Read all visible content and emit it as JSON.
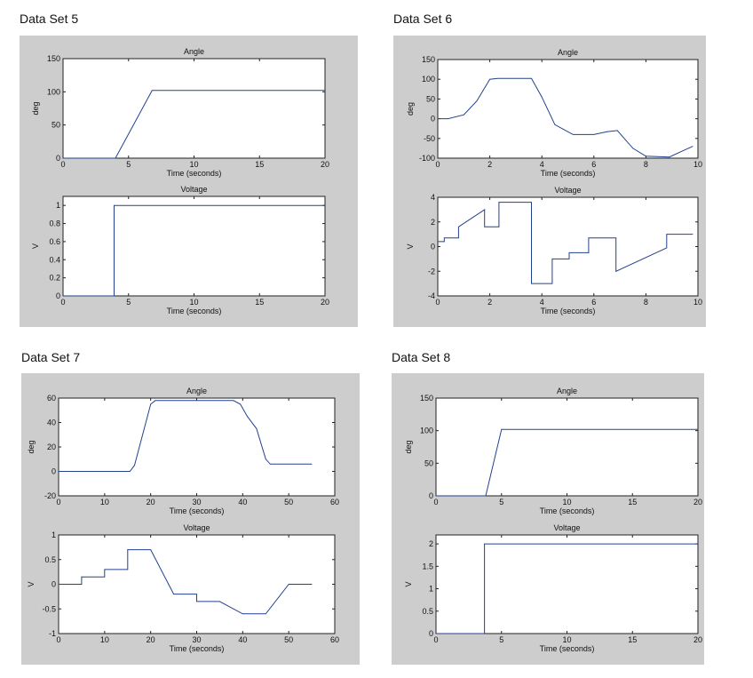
{
  "line_color": "#23418f",
  "panel_color": "#cdcdcd",
  "chart_data": [
    {
      "title": "Data Set 5",
      "subplots": [
        {
          "type": "line",
          "title": "Angle",
          "xlabel": "Time (seconds)",
          "ylabel": "deg",
          "xlim": [
            0,
            20
          ],
          "ylim": [
            0,
            150
          ],
          "xticks": [
            0,
            5,
            10,
            15,
            20
          ],
          "yticks": [
            0,
            50,
            100,
            150
          ],
          "points": [
            [
              0,
              0
            ],
            [
              4,
              0
            ],
            [
              6.8,
              102
            ],
            [
              20,
              102
            ]
          ]
        },
        {
          "type": "line",
          "title": "Voltage",
          "xlabel": "Time (seconds)",
          "ylabel": "V",
          "xlim": [
            0,
            20
          ],
          "ylim": [
            0,
            1.1
          ],
          "xticks": [
            0,
            5,
            10,
            15,
            20
          ],
          "yticks": [
            0,
            0.2,
            0.4,
            0.6,
            0.8,
            1
          ],
          "points": [
            [
              0,
              0
            ],
            [
              3.9,
              0
            ],
            [
              3.9,
              1
            ],
            [
              20,
              1
            ]
          ]
        }
      ]
    },
    {
      "title": "Data Set 6",
      "subplots": [
        {
          "type": "line",
          "title": "Angle",
          "xlabel": "Time (seconds)",
          "ylabel": "deg",
          "xlim": [
            0,
            10
          ],
          "ylim": [
            -100,
            150
          ],
          "xticks": [
            0,
            2,
            4,
            6,
            8,
            10
          ],
          "yticks": [
            -100,
            -50,
            0,
            50,
            100,
            150
          ],
          "points": [
            [
              0,
              0
            ],
            [
              0.4,
              0
            ],
            [
              1,
              10
            ],
            [
              1.5,
              45
            ],
            [
              2,
              100
            ],
            [
              2.3,
              102
            ],
            [
              3.6,
              102
            ],
            [
              4,
              55
            ],
            [
              4.5,
              -15
            ],
            [
              5.2,
              -40
            ],
            [
              6,
              -40
            ],
            [
              6.5,
              -33
            ],
            [
              6.9,
              -30
            ],
            [
              7.5,
              -75
            ],
            [
              8,
              -95
            ],
            [
              8.9,
              -97
            ],
            [
              9.3,
              -85
            ],
            [
              9.8,
              -70
            ]
          ]
        },
        {
          "type": "line",
          "title": "Voltage",
          "xlabel": "Time (seconds)",
          "ylabel": "V",
          "xlim": [
            0,
            10
          ],
          "ylim": [
            -4,
            4
          ],
          "xticks": [
            0,
            2,
            4,
            6,
            8,
            10
          ],
          "yticks": [
            -4,
            -2,
            0,
            2,
            4
          ],
          "points": [
            [
              0,
              0.4
            ],
            [
              0.25,
              0.4
            ],
            [
              0.25,
              0.7
            ],
            [
              0.8,
              0.7
            ],
            [
              0.8,
              1.6
            ],
            [
              1.8,
              3
            ],
            [
              1.8,
              1.6
            ],
            [
              2.35,
              1.6
            ],
            [
              2.35,
              3.6
            ],
            [
              3.6,
              3.6
            ],
            [
              3.6,
              -3
            ],
            [
              4.4,
              -3
            ],
            [
              4.4,
              -1
            ],
            [
              5.05,
              -1
            ],
            [
              5.05,
              -0.5
            ],
            [
              5.8,
              -0.5
            ],
            [
              5.8,
              0.7
            ],
            [
              6.85,
              0.7
            ],
            [
              6.85,
              -2
            ],
            [
              8.8,
              -0.1
            ],
            [
              8.8,
              1
            ],
            [
              9.8,
              1
            ]
          ]
        }
      ]
    },
    {
      "title": "Data Set 7",
      "subplots": [
        {
          "type": "line",
          "title": "Angle",
          "xlabel": "Time (seconds)",
          "ylabel": "deg",
          "xlim": [
            0,
            60
          ],
          "ylim": [
            -20,
            60
          ],
          "xticks": [
            0,
            10,
            20,
            30,
            40,
            50,
            60
          ],
          "yticks": [
            -20,
            0,
            20,
            40,
            60
          ],
          "points": [
            [
              0,
              0
            ],
            [
              15.5,
              0
            ],
            [
              16.5,
              5
            ],
            [
              20,
              55
            ],
            [
              21,
              58
            ],
            [
              38,
              58
            ],
            [
              39.5,
              55
            ],
            [
              41,
              45
            ],
            [
              43,
              35
            ],
            [
              45,
              10
            ],
            [
              46,
              6
            ],
            [
              55,
              6
            ]
          ]
        },
        {
          "type": "line",
          "title": "Voltage",
          "xlabel": "Time (seconds)",
          "ylabel": "V",
          "xlim": [
            0,
            60
          ],
          "ylim": [
            -1,
            1
          ],
          "xticks": [
            0,
            10,
            20,
            30,
            40,
            50,
            60
          ],
          "yticks": [
            -1,
            -0.5,
            0,
            0.5,
            1
          ],
          "points": [
            [
              0,
              0
            ],
            [
              5,
              0
            ],
            [
              5,
              0.15
            ],
            [
              10,
              0.15
            ],
            [
              10,
              0.3
            ],
            [
              15,
              0.3
            ],
            [
              15,
              0.7
            ],
            [
              20,
              0.7
            ],
            [
              25,
              -0.2
            ],
            [
              30,
              -0.2
            ],
            [
              30,
              -0.35
            ],
            [
              35,
              -0.35
            ],
            [
              40,
              -0.6
            ],
            [
              45,
              -0.6
            ],
            [
              50,
              0
            ],
            [
              55,
              0
            ]
          ]
        }
      ]
    },
    {
      "title": "Data Set 8",
      "subplots": [
        {
          "type": "line",
          "title": "Angle",
          "xlabel": "Time (seconds)",
          "ylabel": "deg",
          "xlim": [
            0,
            20
          ],
          "ylim": [
            0,
            150
          ],
          "xticks": [
            0,
            5,
            10,
            15,
            20
          ],
          "yticks": [
            0,
            50,
            100,
            150
          ],
          "points": [
            [
              0,
              0
            ],
            [
              3.8,
              0
            ],
            [
              5,
              102
            ],
            [
              20,
              102
            ]
          ]
        },
        {
          "type": "line",
          "title": "Voltage",
          "xlabel": "Time (seconds)",
          "ylabel": "V",
          "xlim": [
            0,
            20
          ],
          "ylim": [
            0,
            2.2
          ],
          "xticks": [
            0,
            5,
            10,
            15,
            20
          ],
          "yticks": [
            0,
            0.5,
            1,
            1.5,
            2
          ],
          "points": [
            [
              0,
              0
            ],
            [
              3.7,
              0
            ],
            [
              3.7,
              2
            ],
            [
              20,
              2
            ]
          ]
        }
      ]
    }
  ]
}
